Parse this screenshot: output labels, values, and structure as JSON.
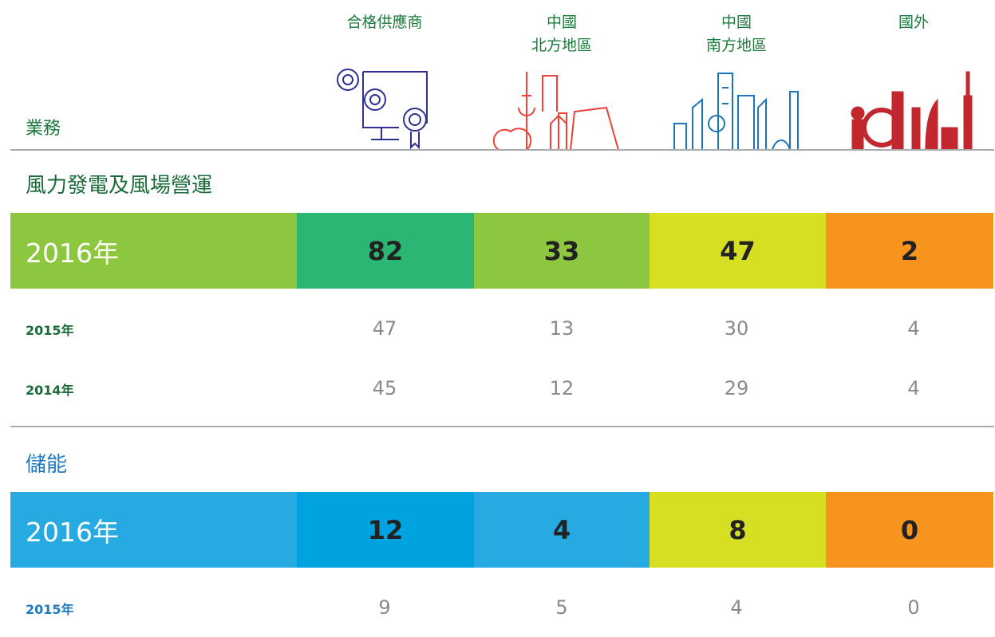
{
  "header": {
    "row_label": "業務",
    "columns": [
      [
        "合格供應商"
      ],
      [
        "中國",
        "北方地區"
      ],
      [
        "中國",
        "南方地區"
      ],
      [
        "國外"
      ]
    ]
  },
  "sections": [
    {
      "title": "風力發電及風場營運",
      "rows": [
        {
          "year": "2016年",
          "values": [
            82,
            33,
            47,
            2
          ]
        },
        {
          "year": "2015年",
          "values": [
            47,
            13,
            30,
            4
          ]
        },
        {
          "year": "2014年",
          "values": [
            45,
            12,
            29,
            4
          ]
        }
      ]
    },
    {
      "title": "儲能",
      "rows": [
        {
          "year": "2016年",
          "values": [
            12,
            4,
            8,
            0
          ]
        },
        {
          "year": "2015年",
          "values": [
            9,
            5,
            4,
            0
          ]
        }
      ]
    }
  ]
}
